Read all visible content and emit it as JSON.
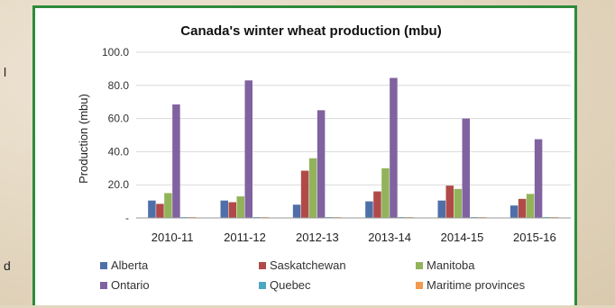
{
  "page": {
    "side_fragments": [
      "l",
      "d"
    ]
  },
  "chart_data": {
    "type": "bar",
    "title": "Canada's winter wheat production (mbu)",
    "xlabel": "",
    "ylabel": "Production (mbu)",
    "ylim": [
      0,
      100
    ],
    "yticks": [
      "-",
      "20.0",
      "40.0",
      "60.0",
      "80.0",
      "100.0"
    ],
    "grid": true,
    "legend_position": "bottom",
    "categories": [
      "2010-11",
      "2011-12",
      "2012-13",
      "2013-14",
      "2014-15",
      "2015-16"
    ],
    "series": [
      {
        "name": "Alberta",
        "color": "#4f6fa8",
        "values": [
          10.5,
          10.5,
          8.0,
          10.0,
          10.5,
          7.5
        ]
      },
      {
        "name": "Saskatchewan",
        "color": "#b04a48",
        "values": [
          8.5,
          9.5,
          28.5,
          16.0,
          19.5,
          11.5
        ]
      },
      {
        "name": "Manitoba",
        "color": "#93b35a",
        "values": [
          15.0,
          13.0,
          36.0,
          30.0,
          17.5,
          14.5
        ]
      },
      {
        "name": "Ontario",
        "color": "#8062a0",
        "values": [
          68.5,
          83.0,
          65.0,
          84.5,
          60.0,
          47.5
        ]
      },
      {
        "name": "Quebec",
        "color": "#4aa7c2",
        "values": [
          0.5,
          0.5,
          0.5,
          0.5,
          0.5,
          0.5
        ]
      },
      {
        "name": "Maritime provinces",
        "color": "#f29a4f",
        "values": [
          0.5,
          0.5,
          0.5,
          0.5,
          0.5,
          0.5
        ]
      }
    ]
  }
}
